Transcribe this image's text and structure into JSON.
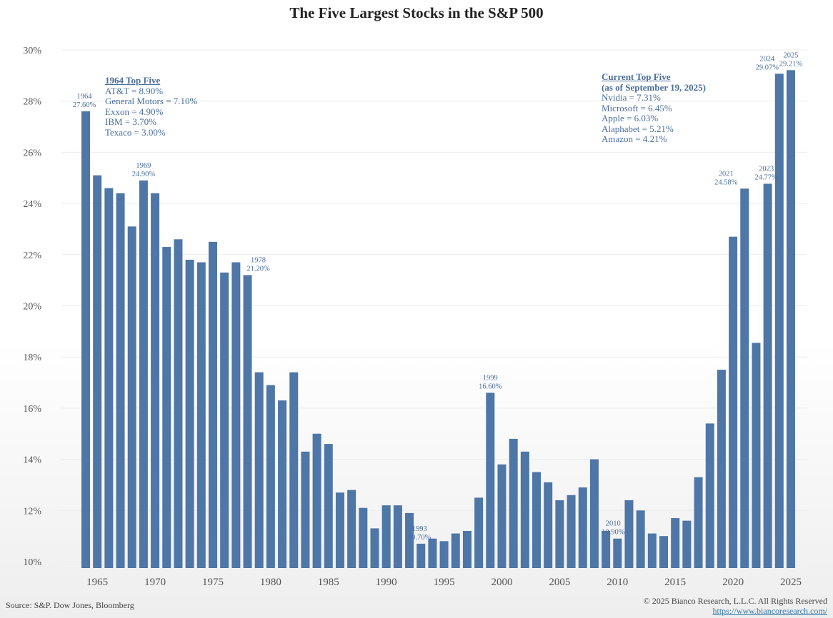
{
  "chart_data": {
    "type": "bar",
    "title": "The Five Largest Stocks in the S&P 500",
    "xlabel": "",
    "ylabel": "",
    "ylim": [
      10,
      30
    ],
    "y_ticks": [
      "10%",
      "12%",
      "14%",
      "16%",
      "18%",
      "20%",
      "22%",
      "24%",
      "26%",
      "28%",
      "30%"
    ],
    "x_ticks": [
      "1965",
      "1970",
      "1975",
      "1980",
      "1985",
      "1990",
      "1995",
      "2000",
      "2005",
      "2010",
      "2015",
      "2020",
      "2025"
    ],
    "grid": "horizontal",
    "bar_color": "#4e76a6",
    "years": [
      1964,
      1965,
      1966,
      1967,
      1968,
      1969,
      1970,
      1971,
      1972,
      1973,
      1974,
      1975,
      1976,
      1977,
      1978,
      1979,
      1980,
      1981,
      1982,
      1983,
      1984,
      1985,
      1986,
      1987,
      1988,
      1989,
      1990,
      1991,
      1992,
      1993,
      1994,
      1995,
      1996,
      1997,
      1998,
      1999,
      2000,
      2001,
      2002,
      2003,
      2004,
      2005,
      2006,
      2007,
      2008,
      2009,
      2010,
      2011,
      2012,
      2013,
      2014,
      2015,
      2016,
      2017,
      2018,
      2019,
      2020,
      2021,
      2022,
      2023,
      2024,
      2025
    ],
    "values": [
      27.6,
      25.1,
      24.6,
      24.4,
      23.1,
      24.9,
      24.4,
      22.3,
      22.6,
      21.8,
      21.7,
      22.5,
      21.3,
      21.7,
      21.2,
      17.4,
      16.9,
      16.3,
      17.4,
      14.3,
      15.0,
      14.6,
      12.7,
      12.8,
      12.1,
      11.3,
      12.2,
      12.2,
      11.9,
      10.7,
      10.9,
      10.8,
      11.1,
      11.2,
      12.5,
      16.6,
      13.8,
      14.8,
      14.3,
      13.5,
      13.1,
      12.4,
      12.6,
      12.9,
      14.0,
      11.2,
      10.9,
      12.4,
      12.0,
      11.1,
      11.0,
      11.7,
      11.6,
      13.3,
      15.4,
      17.5,
      22.7,
      24.58,
      18.55,
      24.77,
      29.07,
      29.21
    ],
    "annotations": [
      {
        "year": 1964,
        "label": "1964",
        "value": "27.60%"
      },
      {
        "year": 1969,
        "label": "1969",
        "value": "24.90%"
      },
      {
        "year": 1978,
        "label": "1978",
        "value": "21.20%"
      },
      {
        "year": 1993,
        "label": "1993",
        "value": "10.70%"
      },
      {
        "year": 1999,
        "label": "1999",
        "value": "16.60%"
      },
      {
        "year": 2010,
        "label": "2010",
        "value": "10.90%"
      },
      {
        "year": 2021,
        "label": "2021",
        "value": "24.58%"
      },
      {
        "year": 2023,
        "label": "2023",
        "value": "24.77%"
      },
      {
        "year": 2024,
        "label": "2024",
        "value": "29.07%"
      },
      {
        "year": 2025,
        "label": "2025",
        "value": "29.21%"
      }
    ]
  },
  "box_1964": {
    "heading": "1964 Top Five",
    "lines": [
      "AT&T = 8.90%",
      "General Motors = 7.10%",
      "Exxon = 4.90%",
      "IBM = 3.70%",
      "Texaco = 3.00%"
    ]
  },
  "box_current": {
    "heading": "Current Top Five",
    "subheading": "(as of September 19, 2025)",
    "lines": [
      "Nvidia = 7.31%",
      "Microsoft = 6.45%",
      "Apple = 6.03%",
      "Alaphabet = 5.21%",
      "Amazon = 4.21%"
    ]
  },
  "footer": {
    "source": "Source: S&P. Dow Jones, Bloomberg",
    "copyright": "© 2025 Bianco Research, L.L.C. All Rights Reserved",
    "url": "https://www.biancoresearch.com/"
  }
}
